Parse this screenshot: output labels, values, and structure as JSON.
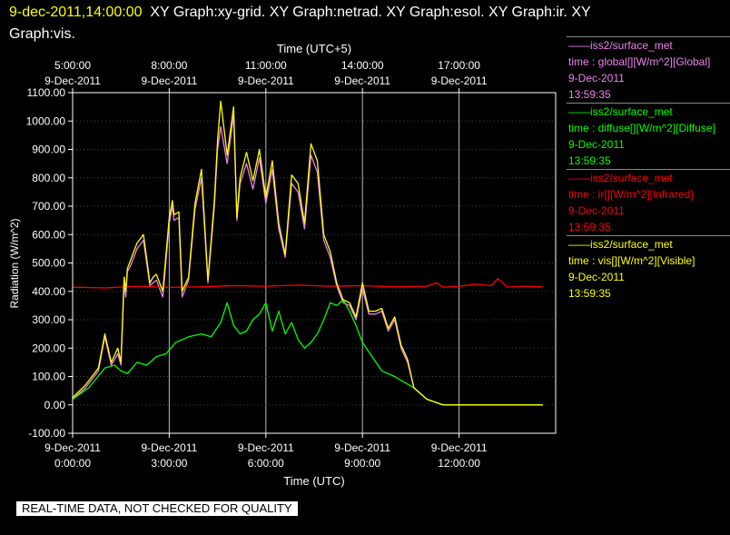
{
  "header": {
    "timestamp": "9-dec-2011,14:00:00",
    "graphs_line1": "XY Graph:xy-grid.  XY Graph:netrad.  XY Graph:esol.  XY Graph:ir.  XY",
    "graphs_line2": "Graph:vis."
  },
  "banner": "REAL-TIME DATA, NOT CHECKED FOR QUALITY",
  "legend": [
    {
      "source": "iss2/surface_met",
      "field": "time : global[][W/m^2][Global]",
      "date": "9-Dec-2011",
      "time": "13:59:35",
      "color": "#ee82ee"
    },
    {
      "source": "iss2/surface_met",
      "field": "time : diffuse[][W/m^2][Diffuse]",
      "date": "9-Dec-2011",
      "time": "13:59:35",
      "color": "#00ff00"
    },
    {
      "source": "iss2/surface_met",
      "field": "time : ir[][W/m^2][Infrared]",
      "date": "9-Dec-2011",
      "time": "13:59:35",
      "color": "#ff0000"
    },
    {
      "source": "iss2/surface_met",
      "field": "time : vis[][W/m^2][Visible]",
      "date": "9-Dec-2011",
      "time": "13:59:35",
      "color": "#ffff00"
    }
  ],
  "chart_data": {
    "type": "line",
    "top_axis_title": "Time (UTC+5)",
    "x_axis_title": "Time (UTC)",
    "y_axis_title": "Radiation (W/m^2)",
    "xlim": [
      0,
      15
    ],
    "ylim": [
      -100,
      1100
    ],
    "x_ticks": [
      0,
      3,
      6,
      9,
      12
    ],
    "x_tick_dates": [
      "9-Dec-2011",
      "9-Dec-2011",
      "9-Dec-2011",
      "9-Dec-2011",
      "9-Dec-2011"
    ],
    "x_tick_times": [
      "0:00:00",
      "3:00:00",
      "6:00:00",
      "9:00:00",
      "12:00:00"
    ],
    "top_ticks": [
      5,
      8,
      11,
      14,
      17
    ],
    "top_tick_dates": [
      "9-Dec-2011",
      "9-Dec-2011",
      "9-Dec-2011",
      "9-Dec-2011",
      "9-Dec-2011"
    ],
    "top_tick_times": [
      "5:00:00",
      "8:00:00",
      "11:00:00",
      "14:00:00",
      "17:00:00"
    ],
    "y_ticks": [
      -100,
      0,
      100,
      200,
      300,
      400,
      500,
      600,
      700,
      800,
      900,
      1000,
      1100
    ],
    "y_tick_labels": [
      "-100.00",
      "0.00",
      "100.00",
      "200.00",
      "300.00",
      "400.00",
      "500.00",
      "600.00",
      "700.00",
      "800.00",
      "900.00",
      "1000.00",
      "1100.00"
    ],
    "grid": true,
    "series": [
      {
        "name": "global",
        "color": "#ee82ee",
        "x": [
          0,
          0.4,
          0.8,
          1.0,
          1.1,
          1.2,
          1.4,
          1.5,
          1.6,
          1.65,
          1.7,
          1.8,
          2.0,
          2.2,
          2.4,
          2.5,
          2.6,
          2.8,
          3.0,
          3.1,
          3.15,
          3.3,
          3.4,
          3.6,
          3.8,
          4.0,
          4.2,
          4.4,
          4.5,
          4.6,
          4.8,
          5.0,
          5.1,
          5.2,
          5.4,
          5.6,
          5.8,
          6.0,
          6.2,
          6.4,
          6.6,
          6.8,
          7.0,
          7.2,
          7.4,
          7.6,
          7.8,
          8.0,
          8.2,
          8.4,
          8.6,
          8.8,
          9.0,
          9.2,
          9.4,
          9.6,
          9.8,
          10.0,
          10.2,
          10.4,
          10.6,
          11.0,
          11.5,
          12.0,
          13.0,
          14.0,
          14.6
        ],
        "y": [
          20,
          60,
          120,
          240,
          190,
          140,
          180,
          140,
          430,
          380,
          470,
          490,
          550,
          580,
          420,
          430,
          440,
          380,
          640,
          700,
          650,
          660,
          380,
          440,
          690,
          800,
          430,
          700,
          900,
          980,
          850,
          1020,
          650,
          780,
          850,
          760,
          870,
          710,
          830,
          620,
          520,
          780,
          750,
          620,
          880,
          820,
          580,
          520,
          420,
          360,
          350,
          300,
          410,
          320,
          320,
          330,
          260,
          300,
          200,
          150,
          60,
          20,
          0,
          0,
          0,
          0,
          0
        ]
      },
      {
        "name": "diffuse",
        "color": "#00ff00",
        "x": [
          0,
          0.5,
          1.0,
          1.3,
          1.5,
          1.7,
          2.0,
          2.3,
          2.6,
          2.9,
          3.2,
          3.6,
          4.0,
          4.3,
          4.6,
          4.8,
          5.0,
          5.2,
          5.4,
          5.6,
          5.8,
          6.0,
          6.2,
          6.4,
          6.6,
          6.8,
          7.0,
          7.2,
          7.4,
          7.6,
          7.8,
          8.0,
          8.2,
          8.4,
          8.6,
          8.8,
          9.0,
          9.3,
          9.6,
          10.0,
          10.3,
          10.6,
          11.0,
          11.5,
          12.0,
          13.0,
          14.0,
          14.6
        ],
        "y": [
          20,
          60,
          130,
          140,
          120,
          110,
          150,
          140,
          170,
          180,
          220,
          240,
          250,
          240,
          290,
          360,
          280,
          250,
          260,
          300,
          320,
          360,
          260,
          330,
          250,
          290,
          230,
          200,
          220,
          250,
          300,
          360,
          350,
          370,
          330,
          280,
          220,
          170,
          120,
          100,
          80,
          60,
          20,
          0,
          0,
          0,
          0,
          0
        ]
      },
      {
        "name": "ir",
        "color": "#ff0000",
        "x": [
          0,
          1,
          2,
          3,
          4,
          5,
          6,
          7,
          8,
          9,
          10,
          11,
          11.3,
          11.5,
          12,
          12.5,
          13,
          13.2,
          13.5,
          14,
          14.6
        ],
        "y": [
          415,
          412,
          418,
          414,
          416,
          420,
          418,
          422,
          418,
          420,
          416,
          418,
          430,
          415,
          418,
          425,
          420,
          445,
          415,
          418,
          416
        ]
      },
      {
        "name": "vis",
        "color": "#ffff00",
        "x": [
          0,
          0.4,
          0.8,
          1.0,
          1.1,
          1.2,
          1.4,
          1.5,
          1.6,
          1.65,
          1.7,
          1.8,
          2.0,
          2.2,
          2.4,
          2.5,
          2.6,
          2.8,
          3.0,
          3.1,
          3.15,
          3.3,
          3.4,
          3.6,
          3.8,
          4.0,
          4.2,
          4.4,
          4.5,
          4.6,
          4.8,
          5.0,
          5.1,
          5.2,
          5.4,
          5.6,
          5.8,
          6.0,
          6.2,
          6.4,
          6.6,
          6.8,
          7.0,
          7.2,
          7.4,
          7.6,
          7.8,
          8.0,
          8.2,
          8.4,
          8.6,
          8.8,
          9.0,
          9.2,
          9.4,
          9.6,
          9.8,
          10.0,
          10.2,
          10.4,
          10.6,
          11.0,
          11.5,
          12.0,
          13.0,
          14.0,
          14.6
        ],
        "y": [
          25,
          70,
          130,
          250,
          200,
          150,
          200,
          150,
          450,
          400,
          480,
          510,
          570,
          600,
          430,
          450,
          460,
          400,
          660,
          720,
          670,
          680,
          400,
          450,
          710,
          830,
          440,
          720,
          930,
          1070,
          880,
          1050,
          660,
          800,
          890,
          790,
          900,
          730,
          860,
          640,
          530,
          810,
          780,
          640,
          920,
          860,
          600,
          540,
          430,
          370,
          360,
          310,
          430,
          330,
          330,
          340,
          270,
          310,
          210,
          160,
          60,
          20,
          0,
          0,
          0,
          0,
          0
        ]
      }
    ]
  }
}
